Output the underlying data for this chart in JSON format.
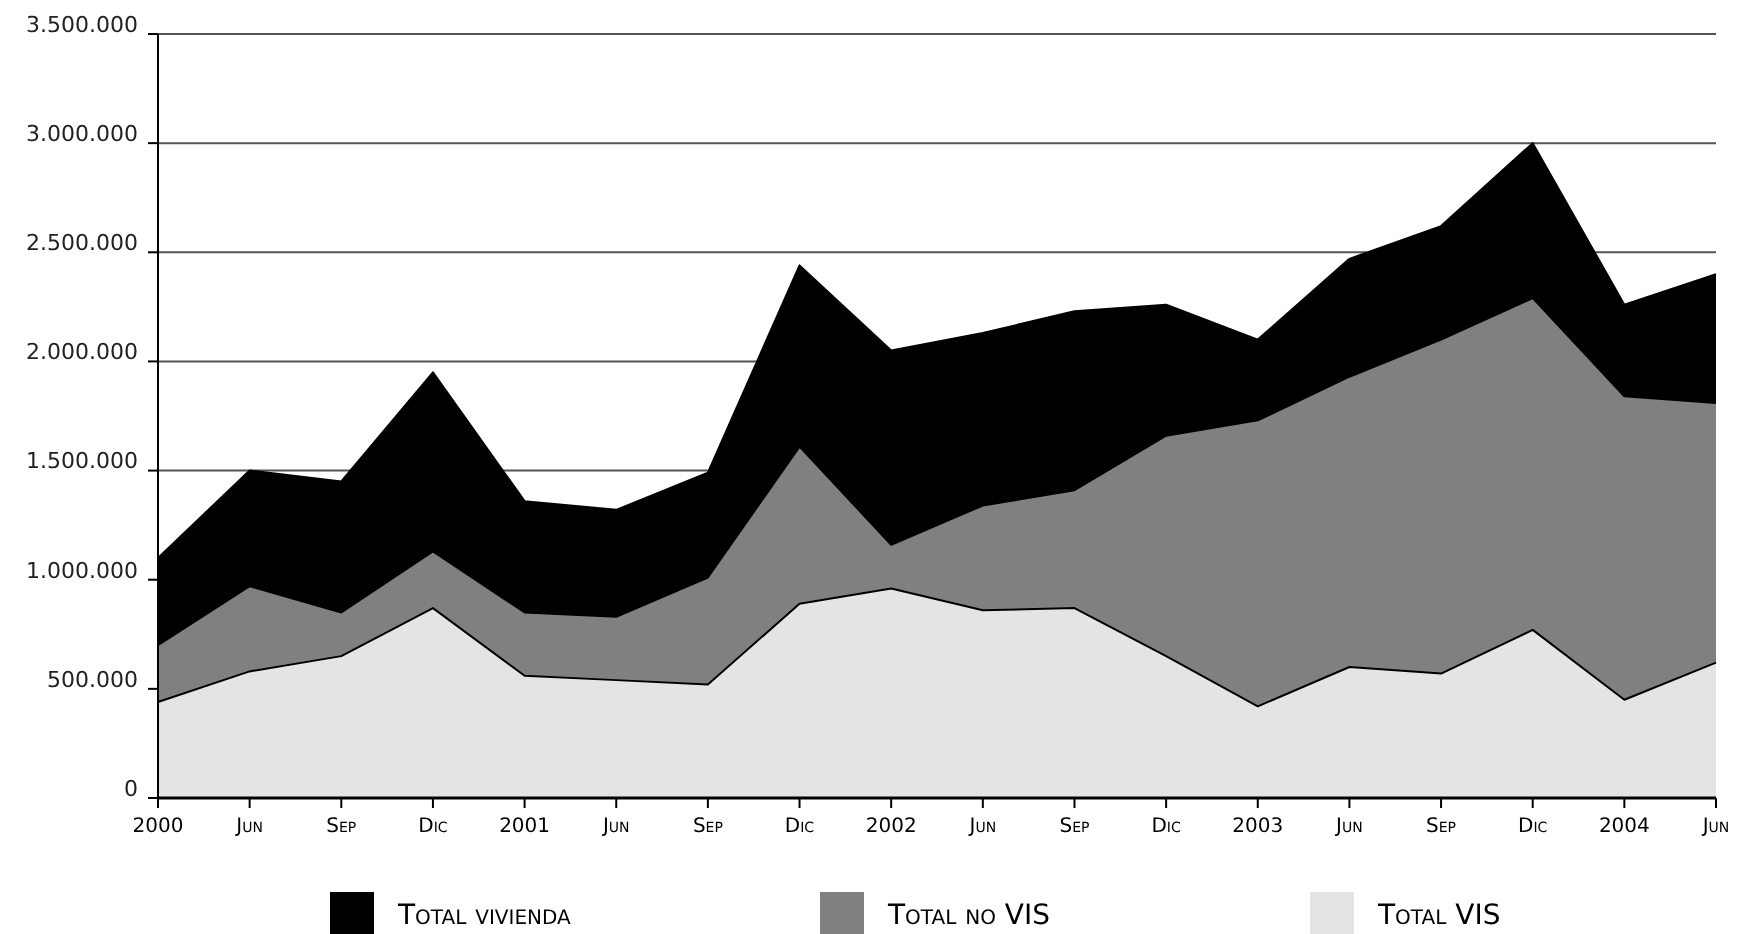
{
  "chart_data": {
    "type": "area",
    "categories": [
      "2000",
      "Jun",
      "Sep",
      "Dic",
      "2001",
      "Jun",
      "Sep",
      "Dic",
      "2002",
      "Jun",
      "Sep",
      "Dic",
      "2003",
      "Jun",
      "Sep",
      "Dic",
      "2004",
      "Jun"
    ],
    "series": [
      {
        "name": "Total vivienda",
        "color": "#000000",
        "values": [
          1100000,
          1500000,
          1450000,
          1950000,
          1360000,
          1320000,
          1490000,
          2440000,
          2050000,
          2130000,
          2230000,
          2260000,
          2100000,
          2470000,
          2620000,
          3000000,
          2260000,
          2400000
        ]
      },
      {
        "name": "Total no VIS",
        "color": "#808080",
        "values": [
          700000,
          970000,
          850000,
          1130000,
          850000,
          830000,
          1010000,
          1610000,
          1160000,
          1340000,
          1410000,
          1660000,
          1730000,
          1930000,
          2100000,
          2290000,
          1840000,
          1810000
        ]
      },
      {
        "name": "Total VIS",
        "color": "#e4e4e4",
        "values": [
          440000,
          580000,
          650000,
          870000,
          560000,
          540000,
          520000,
          890000,
          960000,
          860000,
          870000,
          650000,
          420000,
          600000,
          570000,
          770000,
          450000,
          620000
        ]
      }
    ],
    "ylim": [
      0,
      3500000
    ],
    "yticks": [
      {
        "value": 0,
        "label": "0"
      },
      {
        "value": 500000,
        "label": "500.000"
      },
      {
        "value": 1000000,
        "label": "1.000.000"
      },
      {
        "value": 1500000,
        "label": "1.500.000"
      },
      {
        "value": 2000000,
        "label": "2.000.000"
      },
      {
        "value": 2500000,
        "label": "2.500.000"
      },
      {
        "value": 3000000,
        "label": "3.000.000"
      },
      {
        "value": 3500000,
        "label": "3.500.000"
      }
    ],
    "grid": "y",
    "legend": "bottom"
  }
}
